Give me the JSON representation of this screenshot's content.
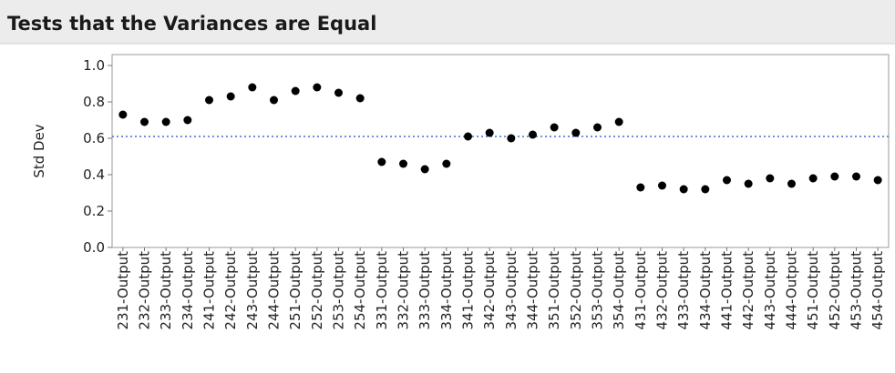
{
  "chart_data": {
    "type": "scatter",
    "title": "Tests that the Variances are Equal",
    "y_label": "Std Dev",
    "categories": [
      "231-Output",
      "232-Output",
      "233-Output",
      "234-Output",
      "241-Output",
      "242-Output",
      "243-Output",
      "244-Output",
      "251-Output",
      "252-Output",
      "253-Output",
      "254-Output",
      "331-Output",
      "332-Output",
      "333-Output",
      "334-Output",
      "341-Output",
      "342-Output",
      "343-Output",
      "344-Output",
      "351-Output",
      "352-Output",
      "353-Output",
      "354-Output",
      "431-Output",
      "432-Output",
      "433-Output",
      "434-Output",
      "441-Output",
      "442-Output",
      "443-Output",
      "444-Output",
      "451-Output",
      "452-Output",
      "453-Output",
      "454-Output"
    ],
    "values": [
      0.73,
      0.69,
      0.69,
      0.7,
      0.81,
      0.83,
      0.88,
      0.81,
      0.86,
      0.88,
      0.85,
      0.82,
      0.47,
      0.46,
      0.43,
      0.46,
      0.61,
      0.63,
      0.6,
      0.62,
      0.66,
      0.63,
      0.66,
      0.69,
      0.33,
      0.34,
      0.32,
      0.32,
      0.37,
      0.35,
      0.38,
      0.35,
      0.38,
      0.39,
      0.39,
      0.37
    ],
    "color": "#000000",
    "reference_line": 0.61,
    "reference_color": "#3a6fd8",
    "ylim": [
      0,
      1.06
    ],
    "yticks": [
      {
        "value": 0,
        "label": "0.0"
      },
      0.2,
      0.4,
      0.6,
      0.8,
      {
        "value": 1,
        "label": "1.0"
      }
    ]
  }
}
